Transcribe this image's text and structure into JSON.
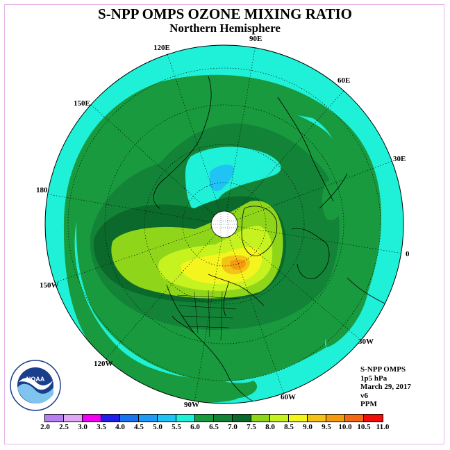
{
  "title": "S-NPP OMPS OZONE MIXING RATIO",
  "subtitle": "Northern Hemisphere",
  "longitude_labels": [
    "90E",
    "60E",
    "30E",
    "0",
    "30W",
    "60W",
    "90W",
    "120W",
    "150W",
    "180",
    "150E",
    "120E"
  ],
  "info": {
    "instrument": "S-NPP OMPS",
    "pressure": "1p5 hPa",
    "date": "March 29, 2017",
    "version": "v6",
    "units": "PPM"
  },
  "colorbar": {
    "ticks": [
      "2.0",
      "2.5",
      "3.0",
      "3.5",
      "4.0",
      "4.5",
      "5.0",
      "5.5",
      "6.0",
      "6.5",
      "7.0",
      "7.5",
      "8.0",
      "8.5",
      "9.0",
      "9.5",
      "10.0",
      "10.5",
      "11.0"
    ],
    "colors": [
      "#b77ff1",
      "#e0a8f2",
      "#f200f2",
      "#2020e8",
      "#1a73f0",
      "#2299f2",
      "#1fc3f4",
      "#1ff0d8",
      "#199a3e",
      "#138437",
      "#0b6a2b",
      "#8fd61a",
      "#c6f21f",
      "#f5f51e",
      "#f4c317",
      "#f59b0f",
      "#f26813",
      "#f20c0c",
      "#7a4a2a"
    ]
  },
  "logo": {
    "name": "NOAA",
    "icon": "noaa-logo"
  },
  "colors": {
    "c55": "#1ff0d8",
    "c60": "#199a3e",
    "c65": "#138437",
    "c70": "#0b6a2b",
    "c75": "#8fd61a",
    "c80": "#c6f21f",
    "c85": "#f5f51e",
    "c90": "#f4c317",
    "c95": "#f59b0f",
    "c50": "#1fc3f4",
    "c45": "#2299f2"
  }
}
